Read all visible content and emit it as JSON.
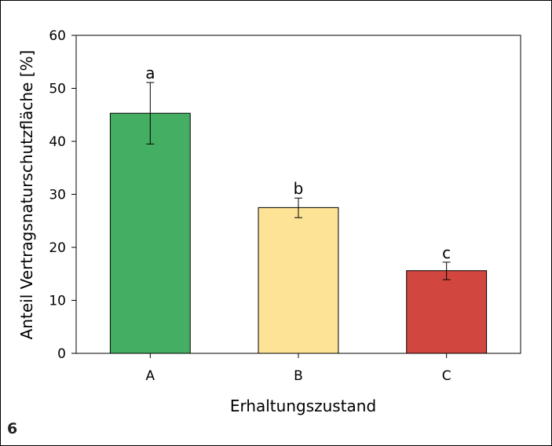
{
  "figure_number": "6",
  "chart_data": {
    "type": "bar",
    "title": "",
    "xlabel": "Erhaltungszustand",
    "ylabel": "Anteil Vertragsnaturschutzfläche [%]",
    "categories": [
      "A",
      "B",
      "C"
    ],
    "values": [
      45.3,
      27.5,
      15.6
    ],
    "error_bars": [
      {
        "low": 39.5,
        "high": 51.1
      },
      {
        "low": 25.6,
        "high": 29.3
      },
      {
        "low": 13.9,
        "high": 17.2
      }
    ],
    "data_labels": [
      "a",
      "b",
      "c"
    ],
    "bar_colors": [
      "#44ae62",
      "#fce396",
      "#d14740"
    ],
    "ylim": [
      0,
      60
    ],
    "yticks": [
      "0",
      "10",
      "20",
      "30",
      "40",
      "50",
      "60"
    ],
    "grid": false
  }
}
